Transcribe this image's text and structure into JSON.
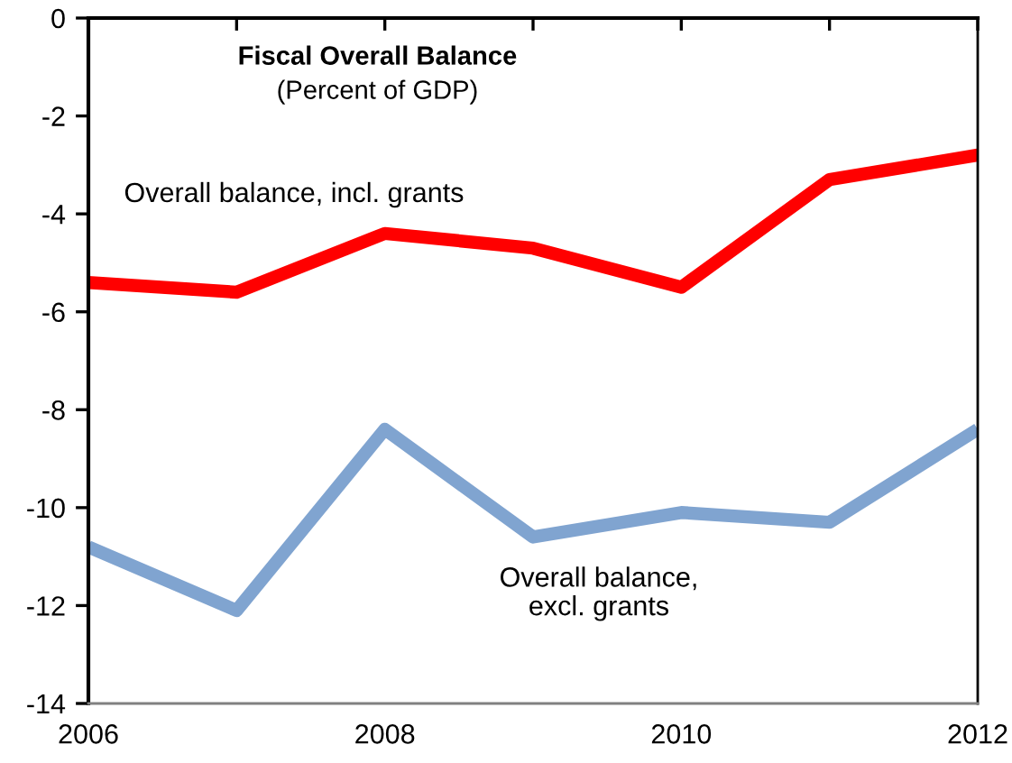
{
  "chart_data": {
    "type": "line",
    "title": "Fiscal Overall Balance",
    "subtitle": "(Percent of GDP)",
    "x": [
      2006,
      2007,
      2008,
      2009,
      2010,
      2011,
      2012
    ],
    "series": [
      {
        "name": "Overall balance, incl. grants",
        "color": "#ff0000",
        "values": [
          -5.4,
          -5.6,
          -4.4,
          -4.7,
          -5.5,
          -3.3,
          -2.8
        ]
      },
      {
        "name": "Overall balance,\nexcl. grants",
        "color": "#80a4d0",
        "values": [
          -10.8,
          -12.1,
          -8.4,
          -10.6,
          -10.1,
          -10.3,
          -8.4
        ]
      }
    ],
    "xlim": [
      2006,
      2012
    ],
    "xticks": [
      2006,
      {
        "value": 2007,
        "label": null
      },
      2008,
      {
        "value": 2009,
        "label": null
      },
      2010,
      {
        "value": 2011,
        "label": null
      },
      2012
    ],
    "ylim": [
      -14,
      0
    ],
    "yticks": [
      -14,
      -12,
      -10,
      -8,
      -6,
      -4,
      -2,
      0
    ],
    "grid": false,
    "legend": false,
    "marker": "none",
    "line_style": "solid"
  }
}
